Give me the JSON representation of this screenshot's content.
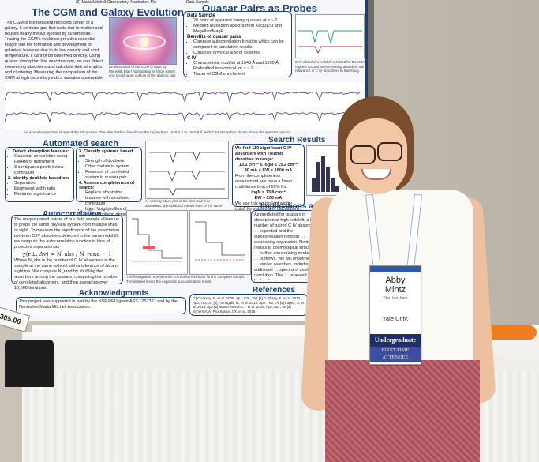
{
  "poster": {
    "header_fragment": "(2) Maria Mitchell Observatory, Nantucket, MA",
    "data_sample_fragment": "Data Sample",
    "cgm": {
      "title": "The CGM and Galaxy Evolution",
      "body": "The CGM is the turbulent recycling center of a galaxy. It contains gas that fuels star formation and houses heavy metals ejected by supernovae. Tracing the CGM's evolution provides essential insight into the formation and development of galaxies, however due to its low density and cool temperature, it cannot be observed directly. Using quasar absorption line spectroscopy, we can detect intervening absorbers and calculate their strengths and clustering. Measuring the comparison of the CGM at high redshifts yields a valuable observable that can be compared to simulations in order to constrain models of cosmic enrichment.",
      "image_caption": "An illustration of the CGM (Image by Meredith Blair) highlighting its large extent and showing an outflow of the galactic gas (Leslie Thompson & al 2011)"
    },
    "quasar": {
      "title": "Quasar Pairs as Probes",
      "data_label": "Data Sample",
      "data_items": [
        "20 pairs of apparent binary quasars at z ~ 2",
        "Medium resolution spectra from Keck/ESI and Magellan/MagE"
      ],
      "benefits_label": "Benefits of quasar pairs",
      "benefit_items": [
        "Compute autocorrelation function which can be compared to simulation results",
        "Constrain physical size of systems"
      ],
      "civ_label": "C IV",
      "civ_items": [
        "Characteristic doublet at 1548 Å and 1550 Å",
        "Redshifted into optical for z ~ 2",
        "Tracer of CGM enrichment"
      ],
      "caption": "C IV absorbers redshift selected for the IGM regions around an intervening absorber; the relevance of C IV absorbers to this study."
    },
    "spectrum_caption": "An example spectrum of one of the 20 quasars. The blue dashed line shows the region from 1548.6 Å to 1550.8 Å, with C IV absorption shown above the spectral regions.",
    "automated": {
      "title": "Automated search",
      "step1_label": "1. Detect absorption features:",
      "step1_items": [
        "Gaussian convolution using FWHM of instrument",
        "3 contiguous pixels below continuum"
      ],
      "step2_label": "2. Identify doublets based on:",
      "step2_items": [
        "Separation",
        "Equivalent width ratio",
        "Features' significance"
      ],
      "step3_label": "3. Classify systems based on:",
      "step3_items": [
        "Strength of doublets",
        "Other metals in system",
        "Presence of correlated system in quasar pair"
      ],
      "step4_label": "4. Assess completeness of search:",
      "step4_items": [
        "Replace absorption features with simulated continuum",
        "Inject Voigt profiles of varying column density"
      ],
      "fig_caption": "A) Velocity stack plot of the detected C IV absorbers. B) Additional metals lines of the same system."
    },
    "search": {
      "title": "Search Results",
      "p1": "We find 119 significant C IV absorbers with column densities in range:",
      "range1": "13.1 cm⁻² ≤ logN ≤ 15.2 cm⁻²",
      "range2": "40 mÅ < EW < 1800 mÅ",
      "p2": "From the completeness assessment, we have a lower confidence limit of 69% for:",
      "lim1": "logN = 13.8 cm⁻²",
      "lim2": "EW = 200 mÅ",
      "p3": "We use this equivalent width cutoff for subsequent calculations."
    },
    "autocorr": {
      "title": "Autocorrelation",
      "body": "The unique paired nature of our data sample allows us to probe the same physical system from multiple lines of sight. To measure the significance of the association between C IV absorbers detected in the same redshift, we compute the autocorrelation function in bins of projected separation as",
      "formula": "χ(r⊥, Δv) = N_abs / N_rand − 1",
      "body2": "Where N_abs is the number of C IV absorbers in the sample at the same redshift with a tolerance of Δv and sightline. We compute N_rand by shuffling the absorbers among the quasars, computing the number of correlated absorbers, and then averaging over 10,000 iterations.",
      "fig_caption": "The histograms represent the correlation functions for the complete sample. The dashed line is the expected autocorrelation result."
    },
    "implications": {
      "title": "Implications and Future",
      "body": "As predicted for quasars in absorption at high redshift, a larger number of paired C IV absorbers … expected and the autocorrelation function … decreasing separation. Next, we … results to cosmological simulations … further constraining models of … outflows. We will implement the … similar searches, including additional … spectra of similar resolution. The … repeated for Mg II absorbers, … properties to C IV absorbers. The … is redder than C IV 1548 and … absorbers at lower redshift."
    },
    "references": {
      "title": "References",
      "body": "[1] Cooksey, K. et al. 2008, ApJ, 676, 262 [2] Cooksey, K. et al. 2013, ApJ, 763, 37 [3] Fumagalli, M. et al. 2014, ApJ, 780, 74 [4] Lopez, S. et al. 2014, ApJ [5] Martin-Navarro, I. et al. 2018, ApJ, 861, 30 [6] Schrimpf, A. Prochaska, J.X. et al. 2019"
    },
    "ack": {
      "title": "Acknowledgments",
      "body": "This project was supported in part by the NSF REU grant AST-1757321 and by the Nantucket Maria Mitchell Association."
    },
    "poster_id": "305.06"
  },
  "badge": {
    "name_first": "Abby",
    "name_last": "Mintz",
    "pronouns": "She, her, hers",
    "affiliation": "Yale Univ.",
    "ribbon_1": "Undergraduate",
    "ribbon_2": "FIRST TIME ATTENDEE"
  },
  "colors": {
    "poster_blue": "#1b3d7a",
    "ribbon_navy": "#1e2f66",
    "skirt_red": "#a8515c"
  }
}
